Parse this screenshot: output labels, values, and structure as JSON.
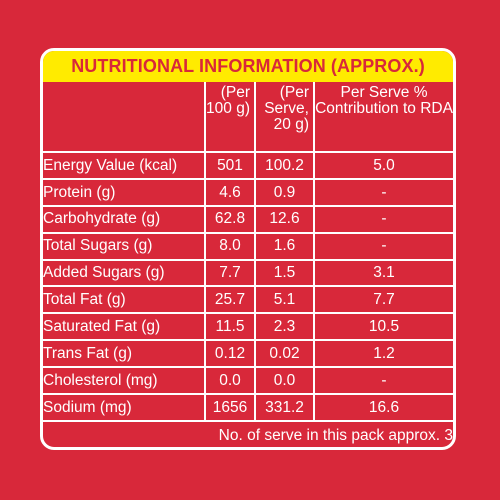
{
  "title": "NUTRITIONAL INFORMATION (APPROX.)",
  "colors": {
    "background": "#d8283a",
    "title_bar": "#ffeb00",
    "title_text": "#d8283a",
    "text": "#ffffff",
    "lines": "#ffffff"
  },
  "table": {
    "headers": {
      "nutrient": "",
      "per_100g": "(Per 100 g)",
      "per_serve": "(Per Serve, 20 g)",
      "rda": "Per Serve % Contribution to RDA"
    },
    "rows": [
      {
        "name": "Energy Value (kcal)",
        "per_100g": "501",
        "per_serve": "100.2",
        "rda": "5.0"
      },
      {
        "name": "Protein (g)",
        "per_100g": "4.6",
        "per_serve": "0.9",
        "rda": "-"
      },
      {
        "name": "Carbohydrate (g)",
        "per_100g": "62.8",
        "per_serve": "12.6",
        "rda": "-"
      },
      {
        "name": "Total Sugars (g)",
        "per_100g": "8.0",
        "per_serve": "1.6",
        "rda": "-"
      },
      {
        "name": "Added Sugars (g)",
        "per_100g": "7.7",
        "per_serve": "1.5",
        "rda": "3.1"
      },
      {
        "name": "Total Fat (g)",
        "per_100g": "25.7",
        "per_serve": "5.1",
        "rda": "7.7"
      },
      {
        "name": "Saturated Fat (g)",
        "per_100g": "11.5",
        "per_serve": "2.3",
        "rda": "10.5"
      },
      {
        "name": "Trans Fat (g)",
        "per_100g": "0.12",
        "per_serve": "0.02",
        "rda": "1.2"
      },
      {
        "name": "Cholesterol (mg)",
        "per_100g": "0.0",
        "per_serve": "0.0",
        "rda": "-"
      },
      {
        "name": "Sodium (mg)",
        "per_100g": "1656",
        "per_serve": "331.2",
        "rda": "16.6"
      }
    ],
    "footer": "No. of serve in this pack approx. 3"
  }
}
